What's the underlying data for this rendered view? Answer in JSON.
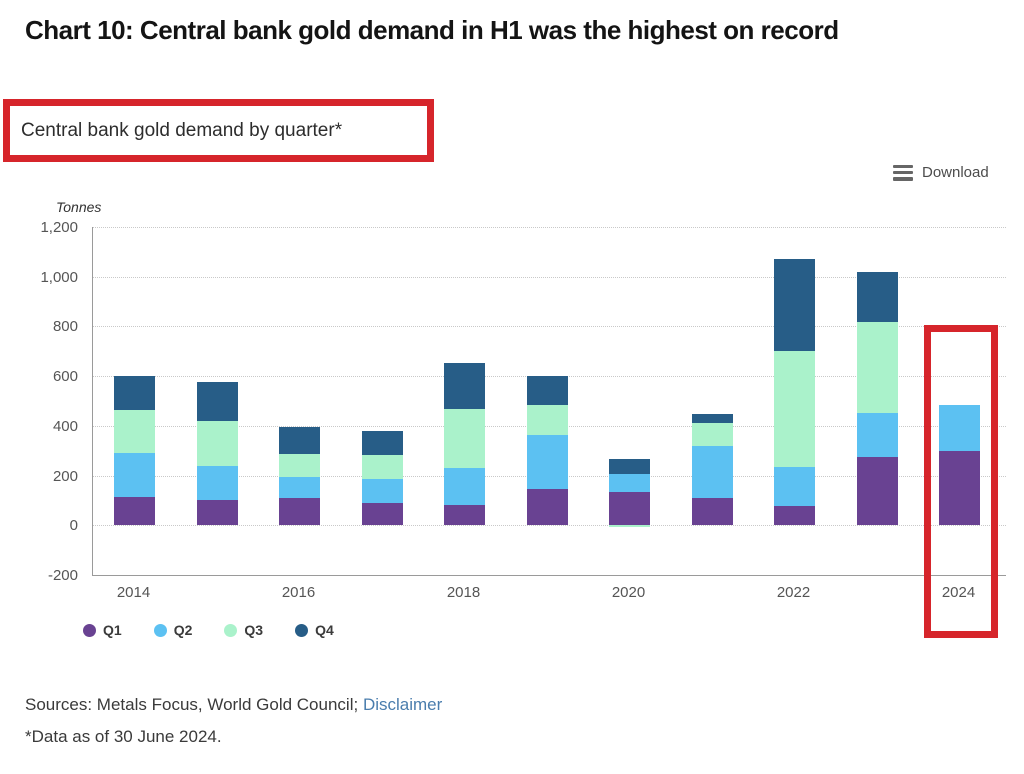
{
  "title": "Chart 10: Central bank gold demand in H1 was the highest on record",
  "subtitle": "Central bank gold demand by quarter*",
  "download": {
    "label": "Download",
    "icon": "hamburger-menu-icon"
  },
  "chart_data": {
    "type": "bar",
    "stacked": true,
    "title": "Central bank gold demand by quarter*",
    "ylabel": "Tonnes",
    "xlabel": "",
    "ylim": [
      -200,
      1200
    ],
    "grid": "horizontal-dotted",
    "legend_position": "bottom-left",
    "categories": [
      "2014",
      "2015",
      "2016",
      "2017",
      "2018",
      "2019",
      "2020",
      "2021",
      "2022",
      "2023",
      "2024"
    ],
    "x_tick_labels": [
      "2014",
      "2016",
      "2018",
      "2020",
      "2022",
      "2024"
    ],
    "y_ticks": [
      {
        "value": 1200,
        "label": "1,200"
      },
      {
        "value": 1000,
        "label": "1,000"
      },
      {
        "value": 800,
        "label": "800"
      },
      {
        "value": 600,
        "label": "600"
      },
      {
        "value": 400,
        "label": "400"
      },
      {
        "value": 200,
        "label": "200"
      },
      {
        "value": 0,
        "label": "0"
      },
      {
        "value": -200,
        "label": "-200"
      }
    ],
    "series": [
      {
        "name": "Q1",
        "color": "#694292",
        "values": [
          115,
          100,
          110,
          88,
          80,
          145,
          135,
          110,
          76,
          276,
          297
        ]
      },
      {
        "name": "Q2",
        "color": "#5cc1f2",
        "values": [
          175,
          140,
          85,
          98,
          152,
          218,
          70,
          210,
          159,
          177,
          186
        ]
      },
      {
        "name": "Q3",
        "color": "#aaf2cb",
        "values": [
          175,
          180,
          90,
          95,
          237,
          120,
          -8,
          90,
          465,
          363,
          0
        ]
      },
      {
        "name": "Q4",
        "color": "#275d87",
        "values": [
          135,
          158,
          110,
          97,
          184,
          119,
          60,
          36,
          373,
          204,
          0
        ]
      }
    ]
  },
  "annotations": {
    "highlight_color": "#d6252b",
    "boxes": [
      "subtitle-highlight",
      "bar-2024-highlight"
    ]
  },
  "footer": {
    "sources_text": "Sources: Metals Focus, World Gold Council; ",
    "disclaimer_link": "Disclaimer",
    "footnote": "*Data as of 30 June 2024."
  }
}
